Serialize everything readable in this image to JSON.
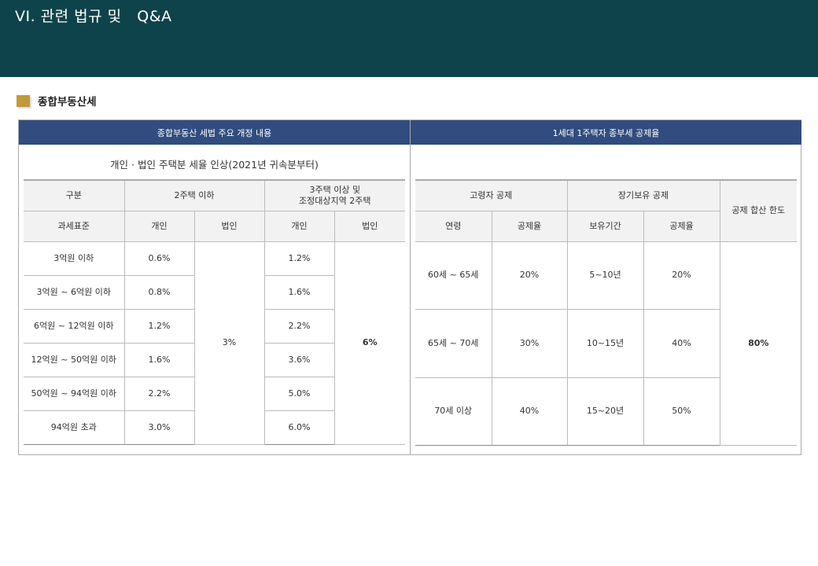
{
  "header": {
    "title": "VI. 관련 법규 및   Q&A"
  },
  "section": {
    "title": "종합부동산세"
  },
  "left": {
    "header": "종합부동산 세법 주요 개정 내용",
    "subtitle": "개인 · 법인 주택분 세율 인상(2021년 귀속분부터)",
    "col_group": [
      "구분",
      "2주택 이하",
      "3주택 이상 및\n조정대상지역 2주택"
    ],
    "cols": [
      "과세표준",
      "개인",
      "법인",
      "개인",
      "법인"
    ],
    "rows": [
      {
        "base": "3억원 이하",
        "p2": "0.6%",
        "p3": "1.2%"
      },
      {
        "base": "3억원 ~ 6억원 이하",
        "p2": "0.8%",
        "p3": "1.6%"
      },
      {
        "base": "6억원 ~ 12억원 이하",
        "p2": "1.2%",
        "p3": "2.2%"
      },
      {
        "base": "12억원 ~ 50억원 이하",
        "p2": "1.6%",
        "p3": "3.6%"
      },
      {
        "base": "50억원 ~ 94억원 이하",
        "p2": "2.2%",
        "p3": "5.0%"
      },
      {
        "base": "94억원 초과",
        "p2": "3.0%",
        "p3": "6.0%"
      }
    ],
    "corp2": "3%",
    "corp3": "6%"
  },
  "right": {
    "header": "1세대 1주택자 종부세 공제율",
    "col_group": [
      "고령자 공제",
      "장기보유 공제",
      "공제 합산 한도"
    ],
    "cols": [
      "연령",
      "공제율",
      "보유기간",
      "공제율"
    ],
    "rows": [
      {
        "age": "60세 ~ 65세",
        "age_rate": "20%",
        "period": "5~10년",
        "period_rate": "20%"
      },
      {
        "age": "65세 ~ 70세",
        "age_rate": "30%",
        "period": "10~15년",
        "period_rate": "40%"
      },
      {
        "age": "70세 이상",
        "age_rate": "40%",
        "period": "15~20년",
        "period_rate": "50%"
      }
    ],
    "limit": "80%"
  }
}
